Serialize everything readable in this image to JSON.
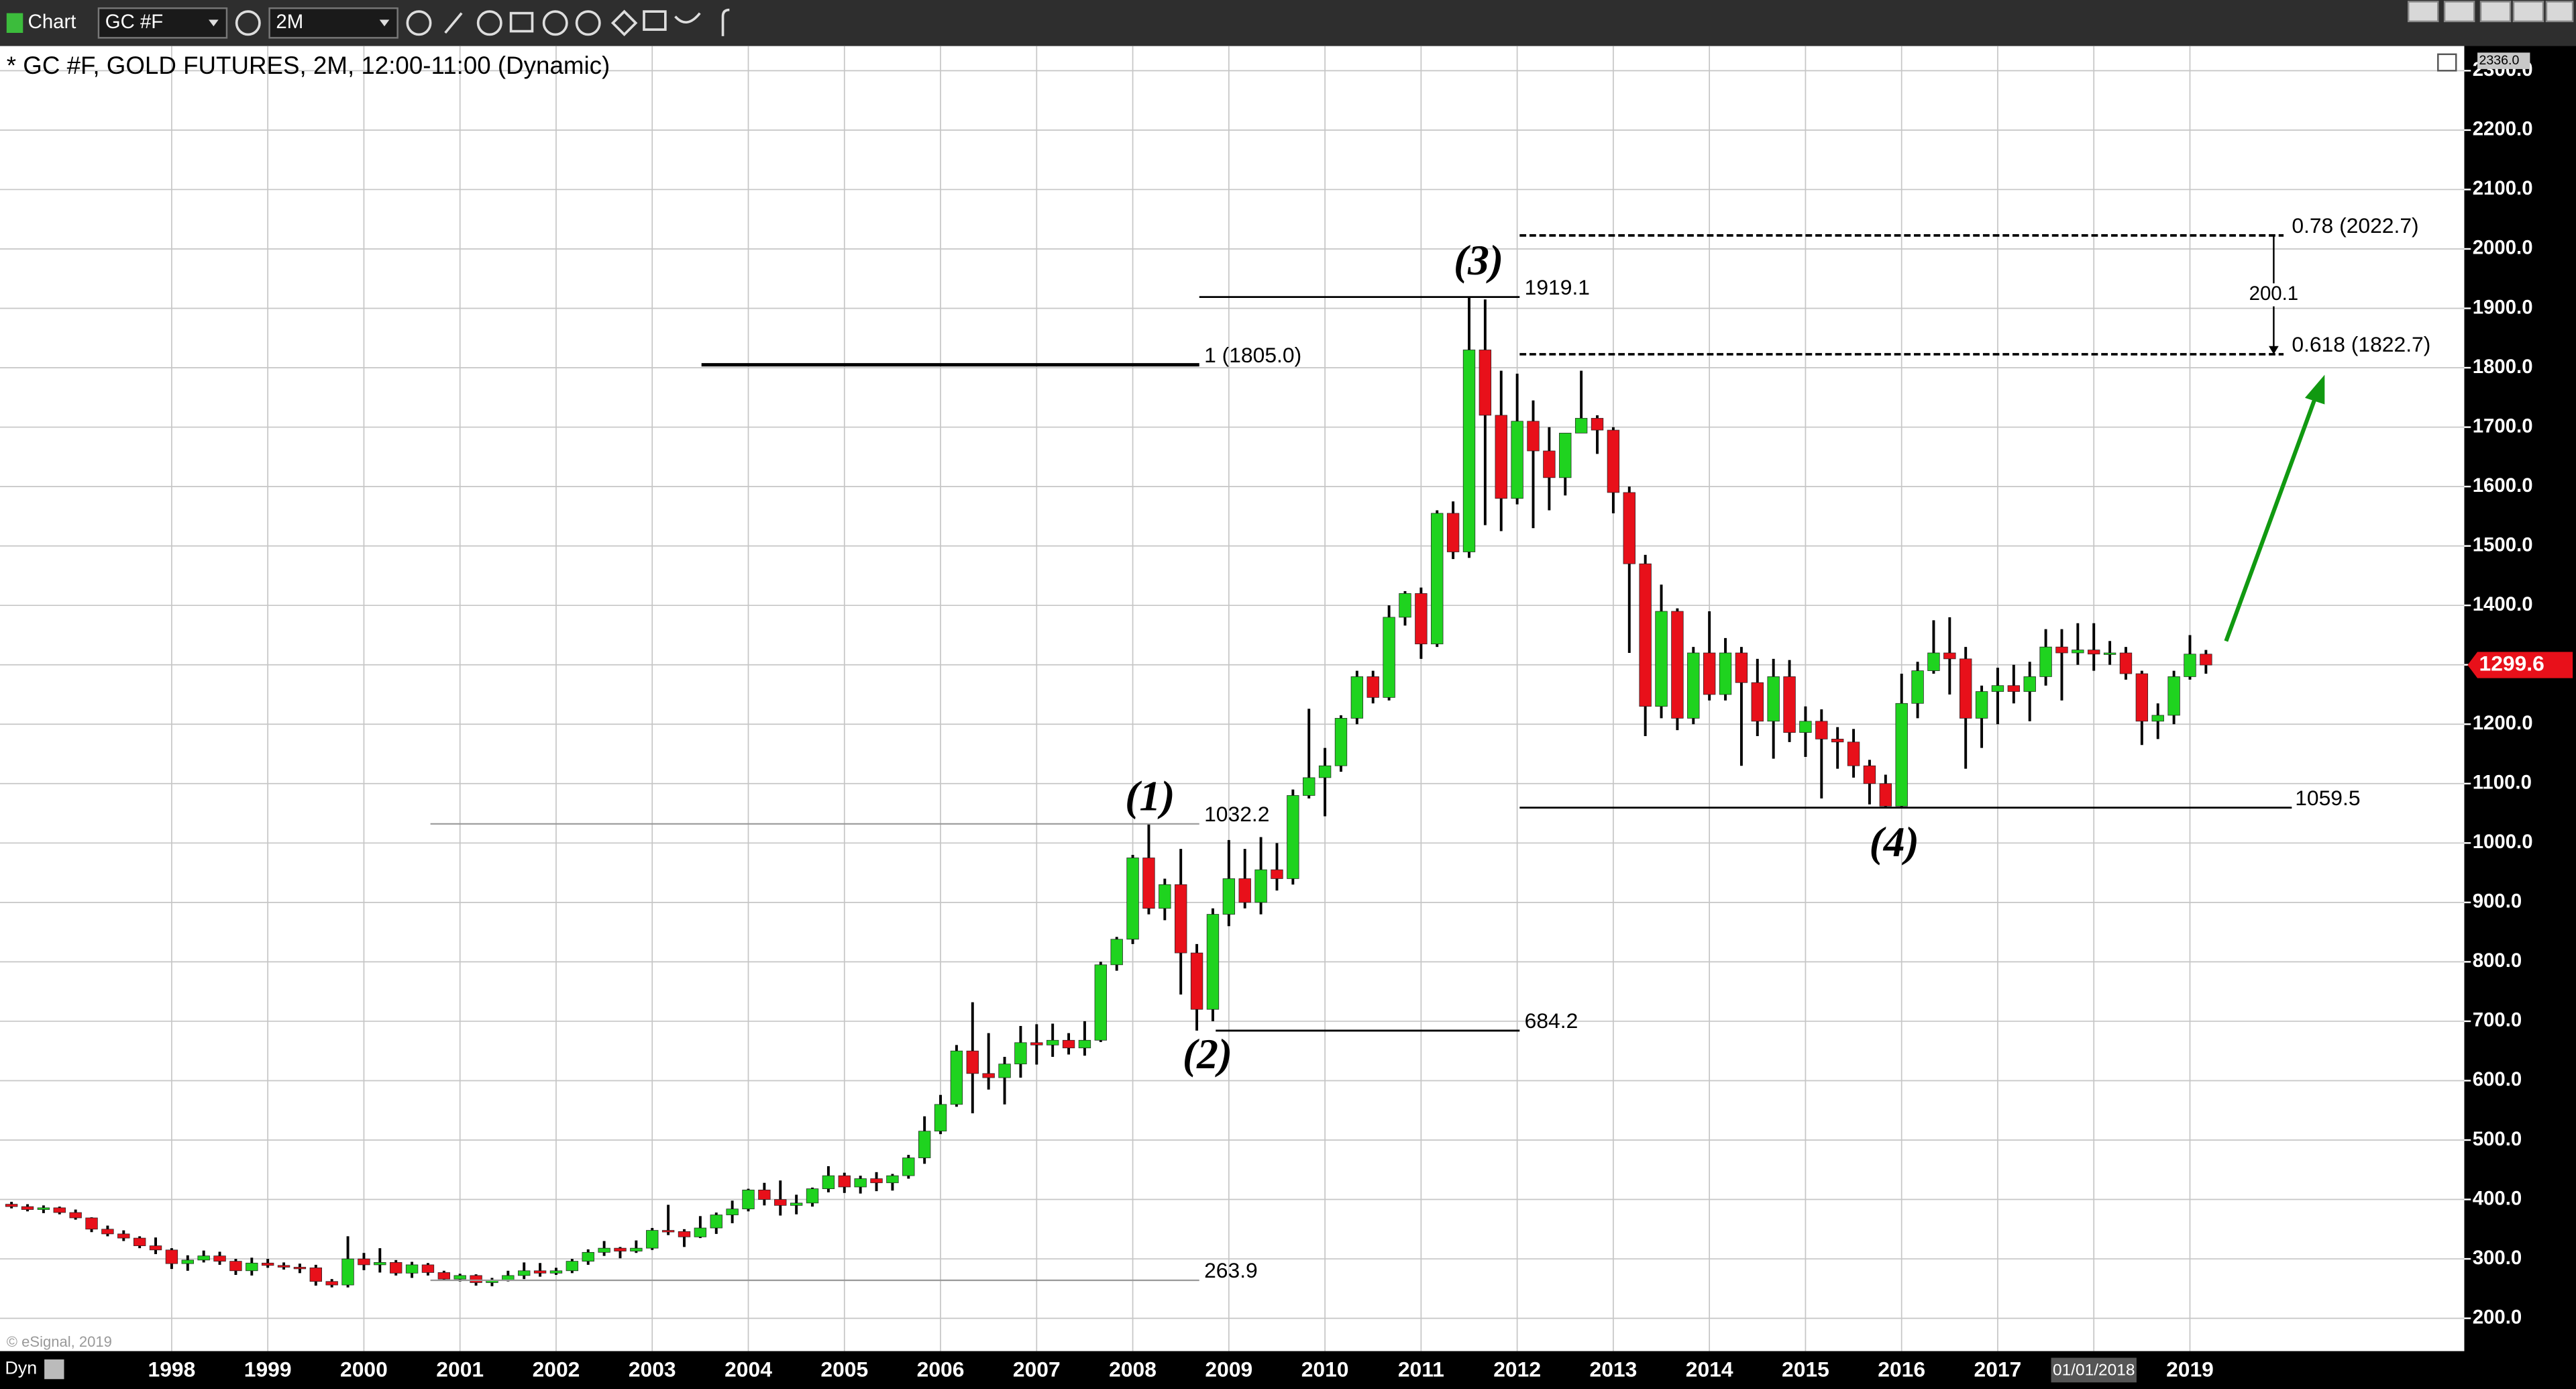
{
  "toolbar": {
    "app": "Chart",
    "symbol": "GC #F",
    "interval": "2M"
  },
  "footer": {
    "mode": "Dyn",
    "copyright": "© eSignal, 2019"
  },
  "chart_data": {
    "type": "candlestick",
    "title": "* GC #F, GOLD FUTURES, 2M, 12:00-11:00 (Dynamic)",
    "categories": [
      null,
      null,
      null,
      null,
      null,
      null,
      null,
      null,
      null,
      null,
      "1998",
      null,
      null,
      null,
      null,
      null,
      "1999",
      null,
      null,
      null,
      null,
      null,
      "2000",
      null,
      null,
      null,
      null,
      null,
      "2001",
      null,
      null,
      null,
      null,
      null,
      "2002",
      null,
      null,
      null,
      null,
      null,
      "2003",
      null,
      null,
      null,
      null,
      null,
      "2004",
      null,
      null,
      null,
      null,
      null,
      "2005",
      null,
      null,
      null,
      null,
      null,
      "2006",
      null,
      null,
      null,
      null,
      null,
      "2007",
      null,
      null,
      null,
      null,
      null,
      "2008",
      null,
      null,
      null,
      null,
      null,
      "2009",
      null,
      null,
      null,
      null,
      null,
      "2010",
      null,
      null,
      null,
      null,
      null,
      "2011",
      null,
      null,
      null,
      null,
      null,
      "2012",
      null,
      null,
      null,
      null,
      null,
      "2013",
      null,
      null,
      null,
      null,
      null,
      "2014",
      null,
      null,
      null,
      null,
      null,
      "2015",
      null,
      null,
      null,
      null,
      null,
      "2016",
      null,
      null,
      null,
      null,
      null,
      "2017",
      null,
      null,
      null,
      null,
      null,
      null,
      null,
      null,
      null,
      null,
      null,
      "2019",
      null
    ],
    "x_cursor": {
      "label": "01/01/2018"
    },
    "open": [
      392,
      388,
      383,
      386,
      378,
      369,
      350,
      342,
      335,
      322,
      315,
      292,
      298,
      305,
      296,
      280,
      293,
      289,
      286,
      285,
      262,
      256,
      300,
      290,
      294,
      276,
      290,
      277,
      266,
      272,
      260,
      264,
      272,
      280,
      276,
      280,
      296,
      311,
      318,
      313,
      318,
      348,
      346,
      337,
      352,
      374,
      384,
      416,
      400,
      390,
      394,
      418,
      440,
      421,
      435,
      428,
      440,
      470,
      515,
      560,
      650,
      612,
      605,
      628,
      664,
      660,
      668,
      655,
      668,
      795,
      838,
      975,
      890,
      930,
      815,
      720,
      880,
      940,
      900,
      955,
      940,
      1080,
      1110,
      1130,
      1210,
      1280,
      1245,
      1380,
      1420,
      1335,
      1555,
      1490,
      1830,
      1720,
      1580,
      1710,
      1660,
      1615,
      1690,
      1715,
      1695,
      1590,
      1470,
      1230,
      1390,
      1210,
      1320,
      1250,
      1320,
      1270,
      1205,
      1280,
      1186,
      1205,
      1175,
      1170,
      1130,
      1100,
      1062,
      1235,
      1290,
      1320,
      1310,
      1210,
      1255,
      1265,
      1255,
      1280,
      1330,
      1320,
      1325,
      1318,
      1320,
      1285,
      1205,
      1215,
      1280,
      1318
    ],
    "high": [
      396,
      392,
      390,
      388,
      383,
      370,
      356,
      348,
      338,
      336,
      318,
      306,
      314,
      312,
      300,
      302,
      300,
      294,
      292,
      290,
      266,
      338,
      310,
      318,
      298,
      295,
      293,
      280,
      275,
      274,
      268,
      280,
      294,
      293,
      285,
      300,
      316,
      330,
      320,
      331,
      352,
      391,
      350,
      372,
      378,
      398,
      418,
      428,
      432,
      408,
      420,
      456,
      445,
      440,
      446,
      443,
      475,
      540,
      576,
      660,
      732,
      680,
      640,
      692,
      695,
      696,
      680,
      700,
      800,
      842,
      980,
      1032.2,
      940,
      990,
      830,
      890,
      1005,
      990,
      1010,
      1000,
      1090,
      1226,
      1160,
      1215,
      1290,
      1290,
      1400,
      1424,
      1430,
      1560,
      1575,
      1919.1,
      1915,
      1795,
      1790,
      1745,
      1700,
      1690,
      1795,
      1720,
      1700,
      1600,
      1485,
      1435,
      1395,
      1330,
      1390,
      1345,
      1330,
      1310,
      1310,
      1308,
      1230,
      1225,
      1195,
      1192,
      1140,
      1115,
      1285,
      1305,
      1375,
      1380,
      1330,
      1265,
      1295,
      1300,
      1305,
      1360,
      1360,
      1370,
      1370,
      1340,
      1330,
      1290,
      1235,
      1290,
      1350,
      1325
    ],
    "low": [
      385,
      380,
      377,
      375,
      366,
      345,
      338,
      330,
      318,
      308,
      283,
      280,
      294,
      290,
      273,
      272,
      285,
      282,
      276,
      255,
      252,
      252,
      281,
      277,
      272,
      268,
      272,
      263,
      262,
      255,
      254,
      262,
      266,
      270,
      273,
      276,
      290,
      305,
      301,
      310,
      315,
      340,
      320,
      335,
      342,
      360,
      380,
      390,
      373,
      375,
      388,
      412,
      411,
      410,
      414,
      415,
      435,
      460,
      510,
      556,
      545,
      585,
      560,
      605,
      627,
      640,
      644,
      642,
      665,
      785,
      830,
      880,
      870,
      745,
      684.2,
      700,
      860,
      890,
      880,
      920,
      930,
      1075,
      1045,
      1120,
      1200,
      1235,
      1240,
      1366,
      1310,
      1330,
      1478,
      1480,
      1535,
      1525,
      1570,
      1530,
      1560,
      1585,
      1690,
      1655,
      1555,
      1320,
      1180,
      1210,
      1190,
      1200,
      1240,
      1240,
      1130,
      1180,
      1142,
      1170,
      1145,
      1075,
      1125,
      1110,
      1065,
      1059.5,
      1060,
      1210,
      1285,
      1250,
      1125,
      1160,
      1200,
      1235,
      1205,
      1265,
      1240,
      1300,
      1290,
      1300,
      1275,
      1165,
      1175,
      1200,
      1275,
      1285
    ],
    "close": [
      388,
      383,
      386,
      378,
      369,
      350,
      342,
      335,
      322,
      315,
      292,
      298,
      305,
      296,
      280,
      293,
      289,
      286,
      285,
      262,
      256,
      300,
      290,
      294,
      276,
      290,
      277,
      266,
      272,
      260,
      264,
      272,
      280,
      276,
      280,
      296,
      311,
      318,
      313,
      318,
      348,
      346,
      337,
      352,
      374,
      384,
      416,
      400,
      390,
      394,
      418,
      440,
      421,
      435,
      428,
      440,
      470,
      515,
      560,
      650,
      612,
      605,
      628,
      664,
      660,
      668,
      655,
      668,
      795,
      838,
      975,
      890,
      930,
      815,
      720,
      880,
      940,
      900,
      955,
      940,
      1080,
      1110,
      1130,
      1210,
      1280,
      1245,
      1380,
      1420,
      1335,
      1555,
      1490,
      1830,
      1720,
      1580,
      1710,
      1660,
      1615,
      1690,
      1715,
      1695,
      1590,
      1470,
      1230,
      1390,
      1210,
      1320,
      1250,
      1320,
      1270,
      1205,
      1280,
      1186,
      1205,
      1175,
      1170,
      1130,
      1100,
      1062,
      1235,
      1290,
      1320,
      1310,
      1210,
      1255,
      1265,
      1255,
      1280,
      1330,
      1320,
      1325,
      1318,
      1320,
      1285,
      1205,
      1215,
      1280,
      1318,
      1299.6
    ],
    "up_color": "#1fd31f",
    "down_color": "#e8101a",
    "wick_color": "#000000",
    "ylim": [
      144.6,
      2336
    ],
    "ytop": {
      "value": 2336,
      "label": "2336.0"
    },
    "yticks": [
      {
        "value": 200,
        "label": "200.0"
      },
      {
        "value": 300,
        "label": "300.0"
      },
      {
        "value": 400,
        "label": "400.0"
      },
      {
        "value": 500,
        "label": "500.0"
      },
      {
        "value": 600,
        "label": "600.0"
      },
      {
        "value": 700,
        "label": "700.0"
      },
      {
        "value": 800,
        "label": "800.0"
      },
      {
        "value": 900,
        "label": "900.0"
      },
      {
        "value": 1000,
        "label": "1000.0"
      },
      {
        "value": 1100,
        "label": "1100.0"
      },
      {
        "value": 1200,
        "label": "1200.0"
      },
      {
        "value": 1300,
        "label": "1300.0"
      },
      {
        "value": 1400,
        "label": "1400.0"
      },
      {
        "value": 1500,
        "label": "1500.0"
      },
      {
        "value": 1600,
        "label": "1600.0"
      },
      {
        "value": 1700,
        "label": "1700.0"
      },
      {
        "value": 1800,
        "label": "1800.0"
      },
      {
        "value": 1900,
        "label": "1900.0"
      },
      {
        "value": 2000,
        "label": "2000.0"
      },
      {
        "value": 2100,
        "label": "2100.0"
      },
      {
        "value": 2200,
        "label": "2200.0"
      },
      {
        "value": 2300,
        "label": "2300.0"
      }
    ],
    "grid": true,
    "levels": [
      {
        "value": 1805,
        "label": "1 (1805.0)"
      },
      1919.1,
      1032.2,
      684.2,
      263.9,
      1059.5,
      {
        "value": 2022.7,
        "label": "0.78 (2022.7)"
      },
      {
        "value": 1822.7,
        "label": "0.618 (1822.7)"
      }
    ],
    "measure": 200.1,
    "waves": [
      "(1)",
      "(2)",
      "(3)",
      "(4)"
    ],
    "arrow_color": "#119911"
  }
}
